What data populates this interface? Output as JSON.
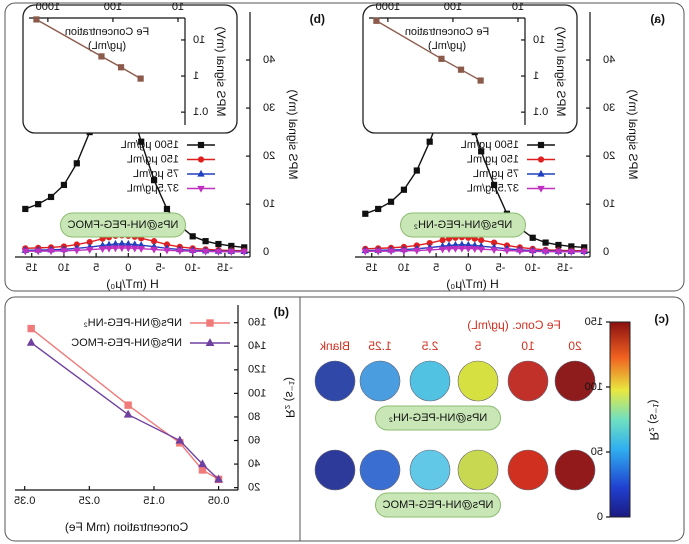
{
  "chart_data": [
    {
      "type": "line",
      "panel_label": "(a)",
      "x_label": "H (mT/μ₀)",
      "y_label": "MPS signal (mV)",
      "sample_label": "NPs@NH-PEG-NH₂",
      "x": [
        -18,
        -16,
        -14,
        -12,
        -10,
        -8,
        -6,
        -4,
        -2,
        -1,
        0,
        1,
        2,
        3,
        4,
        6,
        8,
        10,
        12,
        14,
        16
      ],
      "xlim": [
        -18.9,
        17.6
      ],
      "xticks": [
        -15,
        -10,
        -5,
        0,
        5,
        10,
        15
      ],
      "ylim": [
        -1,
        50
      ],
      "yticks": [
        0,
        10,
        20,
        30,
        40
      ],
      "series": [
        {
          "name": "1500 μg/mL",
          "color": "#111111",
          "marker": "square",
          "values": [
            1,
            1.2,
            1.5,
            2,
            3,
            5,
            8,
            14,
            21,
            25,
            29,
            32,
            34,
            33,
            30,
            23,
            17,
            13,
            10.5,
            9,
            8
          ]
        },
        {
          "name": "150 μg/mL",
          "color": "#e02020",
          "marker": "circle",
          "values": [
            0.3,
            0.3,
            0.4,
            0.5,
            0.7,
            1,
            1.4,
            2,
            2.5,
            2.8,
            3,
            3.1,
            3,
            2.8,
            2.5,
            1.9,
            1.4,
            1.1,
            0.9,
            0.8,
            0.7
          ]
        },
        {
          "name": "75 μg/mL",
          "color": "#2040c0",
          "marker": "tri-up",
          "values": [
            0.15,
            0.15,
            0.2,
            0.25,
            0.35,
            0.5,
            0.7,
            1,
            1.25,
            1.4,
            1.5,
            1.55,
            1.5,
            1.4,
            1.25,
            0.95,
            0.7,
            0.55,
            0.45,
            0.4,
            0.35
          ]
        },
        {
          "name": "37.5μg/mL",
          "color": "#c030c0",
          "marker": "tri-down",
          "values": [
            0.08,
            0.08,
            0.1,
            0.12,
            0.18,
            0.25,
            0.35,
            0.5,
            0.62,
            0.7,
            0.75,
            0.78,
            0.75,
            0.7,
            0.62,
            0.48,
            0.35,
            0.28,
            0.22,
            0.2,
            0.18
          ]
        }
      ]
    },
    {
      "type": "scatter",
      "log_x": true,
      "log_y": true,
      "x_axis": "top",
      "x_label": [
        "Fe Concentration",
        "(μg/mL)"
      ],
      "y_label": "MPS signal (mV)",
      "x": [
        37.5,
        75,
        150,
        1500
      ],
      "xlim": [
        7.8,
        1950
      ],
      "xticks": [
        10,
        100,
        1000
      ],
      "ylim": [
        0.044,
        40.6
      ],
      "yticks": [
        0.1,
        1,
        10
      ],
      "fit_line": true,
      "series": [
        {
          "color": "#8b5a4a",
          "marker": "square",
          "values": [
            0.75,
            1.5,
            3,
            34
          ]
        }
      ]
    },
    {
      "type": "line",
      "panel_label": "(b)",
      "x_label": "H (mT/μ₀)",
      "y_label": "MPS signal (mV)",
      "sample_label": "NPs@NH-PEG-FMOC",
      "x": [
        -18,
        -16,
        -14,
        -12,
        -10,
        -8,
        -6,
        -4,
        -2,
        -1,
        0,
        1,
        2,
        3,
        4,
        6,
        8,
        10,
        12,
        14,
        16
      ],
      "xlim": [
        -18.9,
        17.6
      ],
      "xticks": [
        -15,
        -10,
        -5,
        0,
        5,
        10,
        15
      ],
      "ylim": [
        -1,
        50
      ],
      "yticks": [
        0,
        10,
        20,
        30,
        40
      ],
      "series": [
        {
          "name": "1500 μg/mL",
          "color": "#111111",
          "marker": "square",
          "values": [
            1,
            1.3,
            1.7,
            2.3,
            3.3,
            5.5,
            9,
            15,
            23,
            27.5,
            32,
            35,
            37,
            35.5,
            32,
            25,
            18.5,
            14,
            11.5,
            10,
            9
          ]
        },
        {
          "name": "150 μg/mL",
          "color": "#e02020",
          "marker": "circle",
          "values": [
            0.3,
            0.35,
            0.45,
            0.6,
            0.8,
            1.1,
            1.6,
            2.3,
            2.9,
            3.2,
            3.4,
            3.5,
            3.4,
            3.1,
            2.8,
            2.1,
            1.6,
            1.2,
            1,
            0.9,
            0.8
          ]
        },
        {
          "name": "75 μg/mL",
          "color": "#2040c0",
          "marker": "tri-up",
          "values": [
            0.15,
            0.18,
            0.22,
            0.3,
            0.4,
            0.55,
            0.8,
            1.15,
            1.45,
            1.6,
            1.7,
            1.75,
            1.7,
            1.55,
            1.4,
            1.05,
            0.8,
            0.6,
            0.5,
            0.45,
            0.4
          ]
        },
        {
          "name": "37.5μg/mL",
          "color": "#c030c0",
          "marker": "tri-down",
          "values": [
            0.08,
            0.09,
            0.11,
            0.15,
            0.2,
            0.28,
            0.4,
            0.58,
            0.72,
            0.8,
            0.85,
            0.88,
            0.85,
            0.78,
            0.7,
            0.52,
            0.4,
            0.3,
            0.25,
            0.22,
            0.2
          ]
        }
      ]
    },
    {
      "type": "scatter",
      "log_x": true,
      "log_y": true,
      "x_axis": "top",
      "x_label": [
        "Fe Concentration",
        "(μg/mL)"
      ],
      "y_label": "MPS signal (mV)",
      "x": [
        37.5,
        75,
        150,
        1500
      ],
      "xlim": [
        7.8,
        1950
      ],
      "xticks": [
        10,
        100,
        1000
      ],
      "ylim": [
        0.044,
        40.6
      ],
      "yticks": [
        0.1,
        1,
        10
      ],
      "fit_line": true,
      "series": [
        {
          "color": "#8b5a4a",
          "marker": "square",
          "values": [
            0.85,
            1.75,
            3.5,
            37
          ]
        }
      ]
    },
    {
      "type": "well_plate",
      "panel_label": "(c)",
      "header": "Fe Conc. (μg/mL)",
      "columns": [
        "20",
        "10",
        "5",
        "2.5",
        "1.25",
        "Blank"
      ],
      "rows": [
        {
          "label": "NPs@NH-PEG-NH₂",
          "colors": [
            "#8e1c1c",
            "#c2302a",
            "#d6e040",
            "#52c2e2",
            "#4a9ee0",
            "#3048a8"
          ]
        },
        {
          "label": "NPs@NH-PEG-FMOC",
          "colors": [
            "#931a1a",
            "#d03020",
            "#c8d850",
            "#62c8e8",
            "#3a6ed0",
            "#2e3a9a"
          ]
        }
      ],
      "colorbar": {
        "label": "R₂ (s⁻¹)",
        "lim": [
          0,
          150
        ],
        "ticks": [
          0,
          50,
          100,
          150
        ]
      }
    },
    {
      "type": "scatter",
      "panel_label": "(d)",
      "x_label": "Concentration (mM Fe)",
      "y_label": "R₂ (s⁻¹)",
      "x": [
        0.05,
        0.075,
        0.11,
        0.19,
        0.34
      ],
      "xlim": [
        0.02,
        0.365
      ],
      "xticks": [
        0.05,
        0.15,
        0.25,
        0.35
      ],
      "ylim": [
        18,
        175
      ],
      "yticks": [
        20,
        40,
        60,
        80,
        100,
        120,
        140,
        160
      ],
      "fit_line": true,
      "series": [
        {
          "name": "NPs@NH-PEG-NH₂",
          "color": "#f07a7a",
          "marker": "square",
          "values": [
            27,
            35,
            58,
            90,
            155
          ]
        },
        {
          "name": "NPs@NH-PEG-FMOC",
          "color": "#7040a0",
          "marker": "tri-up",
          "values": [
            27,
            40,
            60,
            82,
            143
          ]
        }
      ]
    }
  ]
}
